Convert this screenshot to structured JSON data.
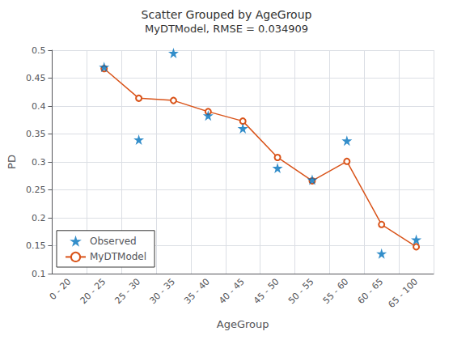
{
  "chart_data": {
    "type": "line",
    "title": "Scatter Grouped by AgeGroup",
    "subtitle": "MyDTModel, RMSE = 0.034909",
    "xlabel": "AgeGroup",
    "ylabel": "PD",
    "categories": [
      "0 - 20",
      "20 - 25",
      "25 - 30",
      "30 - 35",
      "35 - 40",
      "40 - 45",
      "45 - 50",
      "50 - 55",
      "55 - 60",
      "60 - 65",
      "65 - 100"
    ],
    "series": [
      {
        "name": "Observed",
        "type": "scatter",
        "marker": "star",
        "color": "#0072BD",
        "values": [
          null,
          0.47,
          0.34,
          0.495,
          0.383,
          0.36,
          0.289,
          0.268,
          0.338,
          0.136,
          0.161
        ]
      },
      {
        "name": "MyDTModel",
        "type": "line",
        "marker": "circle",
        "color": "#D95319",
        "values": [
          null,
          0.467,
          0.414,
          0.41,
          0.39,
          0.373,
          0.308,
          0.266,
          0.301,
          0.188,
          0.148
        ]
      }
    ],
    "ylim": [
      0.1,
      0.5
    ],
    "yticks": [
      0.1,
      0.15,
      0.2,
      0.25,
      0.3,
      0.35,
      0.4,
      0.45,
      0.5
    ],
    "grid": true,
    "legend": "lower left"
  }
}
